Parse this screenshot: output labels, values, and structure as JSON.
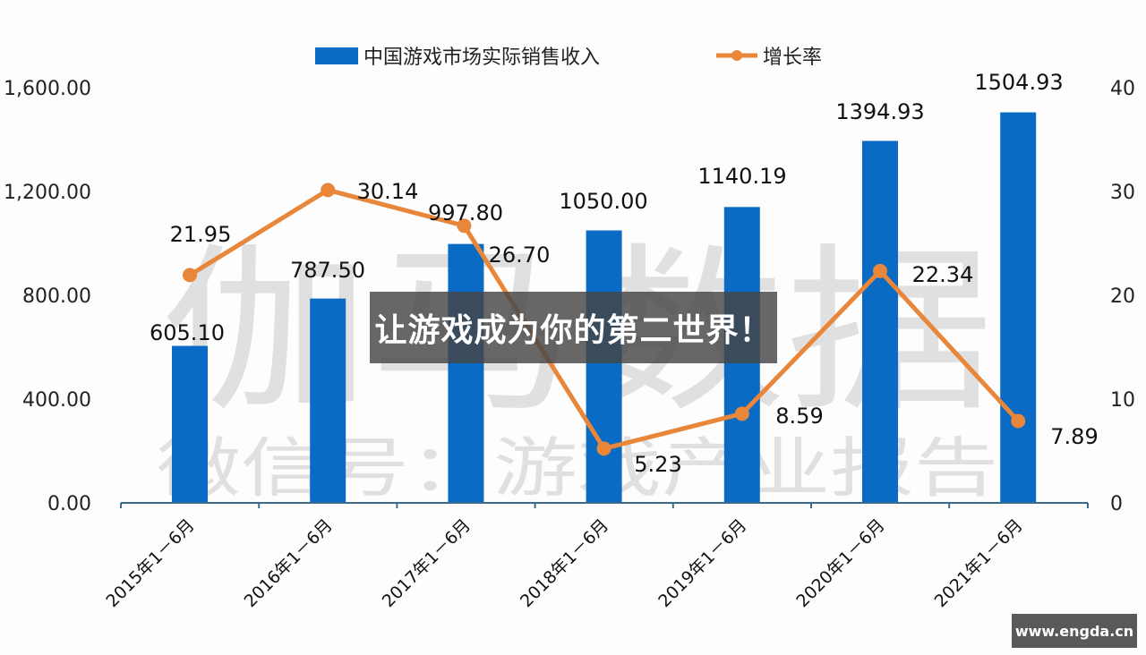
{
  "chart_data": {
    "type": "bar",
    "combo": "bar+line (dual axis)",
    "title": "",
    "categories": [
      "2015年1－6月",
      "2016年1－6月",
      "2017年1－6月",
      "2018年1－6月",
      "2019年1－6月",
      "2020年1－6月",
      "2021年1－6月"
    ],
    "series": [
      {
        "name": "中国游戏市场实际销售收入",
        "type": "bar",
        "axis": "left",
        "color": "#0a6bc4",
        "values": [
          605.1,
          787.5,
          997.8,
          1050.0,
          1140.19,
          1394.93,
          1504.93
        ],
        "labels": [
          "605.10",
          "787.50",
          "997.80",
          "1050.00",
          "1140.19",
          "1394.93",
          "1504.93"
        ]
      },
      {
        "name": "增长率",
        "type": "line",
        "axis": "right",
        "color": "#e8863a",
        "values": [
          21.95,
          30.14,
          26.7,
          5.23,
          8.59,
          22.34,
          7.89
        ],
        "labels": [
          "21.95",
          "30.14",
          "26.70",
          "5.23",
          "8.59",
          "22.34",
          "7.89"
        ]
      }
    ],
    "left_axis": {
      "min": 0,
      "max": 1600,
      "ticks": [
        "0.00",
        "400.00",
        "800.00",
        "1,200.00",
        "1,600.00"
      ],
      "label": ""
    },
    "right_axis": {
      "min": 0,
      "max": 40,
      "ticks": [
        "0",
        "10",
        "20",
        "30",
        "40"
      ],
      "label": ""
    },
    "xlabel": "",
    "ylabel": "",
    "grid": false,
    "legend_position": "top-center"
  },
  "legend": {
    "bar_label": "中国游戏市场实际销售收入",
    "line_label": "增长率"
  },
  "watermark": {
    "large": "伽马数据",
    "small": "微信号：游戏产业报告"
  },
  "overlay": {
    "banner_text": "让游戏成为你的第二世界！",
    "site_badge": "www.engda.cn"
  },
  "colors": {
    "bar": "#0a6bc4",
    "line": "#e8863a",
    "axis": "#3a6a8c",
    "banner_bg": "#464646",
    "badge_bg": "#595959"
  }
}
